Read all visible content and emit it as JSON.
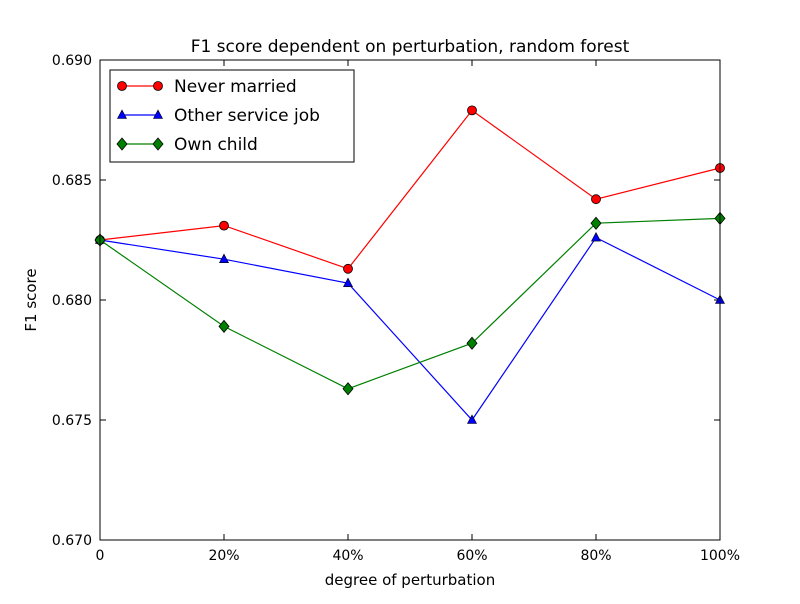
{
  "chart_data": {
    "type": "line",
    "title": "F1 score dependent on perturbation, random forest",
    "xlabel": "degree of perturbation",
    "ylabel": "F1 score",
    "categories": [
      "0",
      "20%",
      "40%",
      "60%",
      "80%",
      "100%"
    ],
    "x": [
      0,
      20,
      40,
      60,
      80,
      100
    ],
    "ylim": [
      0.67,
      0.69
    ],
    "yticks": [
      "0.670",
      "0.675",
      "0.680",
      "0.685",
      "0.690"
    ],
    "ytick_values": [
      0.67,
      0.675,
      0.68,
      0.685,
      0.69
    ],
    "grid": false,
    "legend_position": "top-left",
    "series": [
      {
        "name": "Never married",
        "color": "#ff0000",
        "marker": "circle",
        "values": [
          0.6825,
          0.6831,
          0.6813,
          0.6879,
          0.6842,
          0.6855
        ]
      },
      {
        "name": "Other service job",
        "color": "#0000ff",
        "marker": "triangle",
        "values": [
          0.6825,
          0.6817,
          0.6807,
          0.675,
          0.6826,
          0.68
        ]
      },
      {
        "name": "Own child",
        "color": "#008000",
        "marker": "diamond",
        "values": [
          0.6825,
          0.6789,
          0.6763,
          0.6782,
          0.6832,
          0.6834
        ]
      }
    ]
  }
}
